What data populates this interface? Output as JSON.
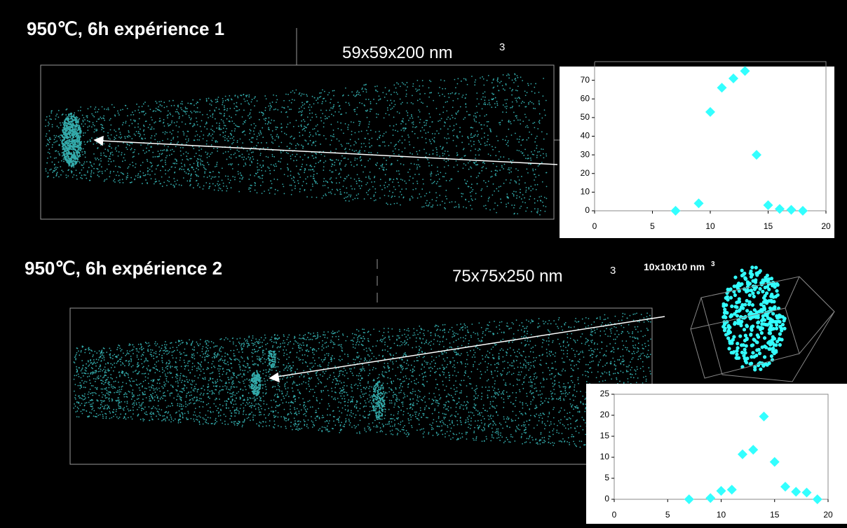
{
  "slide": {
    "title1": "950℃, 6h expérience 1",
    "size1": "59x59x200 nm",
    "size1_exp": "3",
    "title2": "950℃, 6h expérience 2",
    "size2": "75x75x250 nm",
    "size2_exp": "3",
    "inset": "10x10x10 nm",
    "inset_exp": "3"
  },
  "chart_data": [
    {
      "type": "scatter",
      "x": [
        7,
        9,
        10,
        11,
        12,
        13,
        14,
        15,
        16,
        17,
        18
      ],
      "values": [
        0,
        4,
        53,
        66,
        71,
        75,
        30,
        3,
        1,
        0.5,
        0
      ],
      "color": "#33ffff",
      "xlim": [
        0,
        20
      ],
      "xticks": [
        0,
        5,
        10,
        15,
        20
      ],
      "ylim": [
        0,
        80
      ],
      "yticks": [
        0,
        10,
        20,
        30,
        40,
        50,
        60,
        70,
        80
      ]
    },
    {
      "type": "scatter",
      "x": [
        7,
        9,
        10,
        11,
        12,
        13,
        14,
        15,
        16,
        17,
        18,
        19
      ],
      "values": [
        0,
        0.3,
        2,
        2.3,
        10.7,
        11.8,
        19.7,
        8.9,
        3,
        1.8,
        1.6,
        0
      ],
      "color": "#33ffff",
      "xlim": [
        0,
        20
      ],
      "xticks": [
        0,
        5,
        10,
        15,
        20
      ],
      "ylim": [
        0,
        25
      ],
      "yticks": [
        0,
        5,
        10,
        15,
        20,
        25
      ]
    }
  ]
}
